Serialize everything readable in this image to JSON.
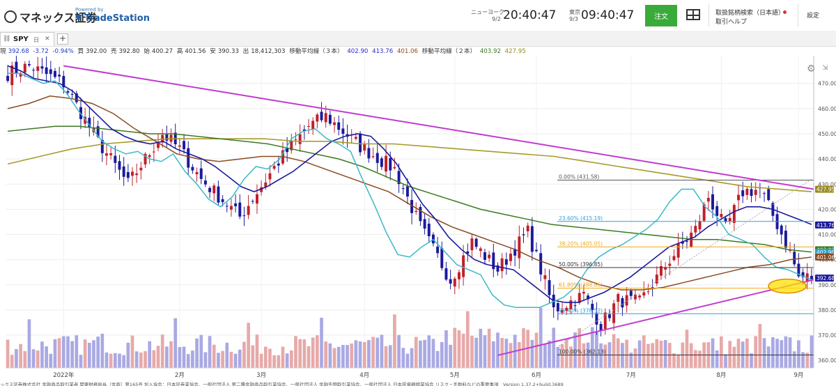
{
  "header": {
    "brand": "マネックス証券",
    "powered_by": "Powered by",
    "tradestation": "TradeStation",
    "ny_label": "ニューヨーク",
    "ny_date": "9/2",
    "ny_time": "20:40:47",
    "tokyo_label": "東京",
    "tokyo_date": "9/3",
    "tokyo_time": "09:40:47",
    "order_label": "注文",
    "menu_search": "取扱銘柄検索（日本語）",
    "menu_help": "取引ヘルプ",
    "settings": "設定"
  },
  "tab": {
    "link_icon": "link-icon",
    "symbol": "SPY",
    "timeframe": "日",
    "close": "✕",
    "add": "+"
  },
  "quote": {
    "last_label": "現",
    "last": "392.68",
    "change": "-3.72",
    "change_pct": "-0.94%",
    "bid_label": "買",
    "bid": "392.00",
    "ask_label": "売",
    "ask": "392.80",
    "open_label": "始",
    "open": "400.27",
    "high_label": "高",
    "high": "401.56",
    "low_label": "安",
    "low": "390.33",
    "vol_label": "出",
    "volume": "18,412,303",
    "ma3_label": "移動平均線（３本）",
    "ma3_values": [
      "402.90",
      "413.76",
      "401.06"
    ],
    "ma2_label": "移動平均線（２本）",
    "ma2_values": [
      "403.92",
      "427.95"
    ]
  },
  "footer": "ックス証券株式会社 金融商品取引業者 関東財務局長（金商）第165号 加入協会：日本証券業協会、一般社団法人 第二種金融商品取引業協会、一般社団法人 金融先物取引業協会、一般社団法人 日本投資顧問業協会 リスク・手数料などの重要事項　Version 1.37.2+build.3689",
  "colors": {
    "up": "#c0202a",
    "down": "#1a1a9c",
    "vol_up": "#e7a9a9",
    "vol_down": "#a9a9e4",
    "fib": "#f0a818",
    "fib_blue": "#2f9fd6",
    "trend": "#c03ad0"
  },
  "chart_data": {
    "type": "candlestick",
    "symbol": "SPY",
    "y_ticks": [
      360,
      370,
      380,
      390,
      400,
      410,
      420,
      430,
      440,
      450,
      460,
      470
    ],
    "ylim": [
      357,
      481
    ],
    "x_labels": [
      "2022年",
      "2月",
      "3月",
      "4月",
      "5月",
      "6月",
      "7月",
      "8月",
      "9月"
    ],
    "x_label_bars": [
      13,
      40,
      59,
      83,
      104,
      123,
      145,
      166,
      184
    ],
    "bar_count": 188,
    "anchors": [
      [
        0,
        474
      ],
      [
        5,
        477
      ],
      [
        13,
        470
      ],
      [
        21,
        447
      ],
      [
        28,
        430
      ],
      [
        36,
        450
      ],
      [
        40,
        444
      ],
      [
        45,
        432
      ],
      [
        54,
        417
      ],
      [
        63,
        439
      ],
      [
        70,
        453
      ],
      [
        74,
        457
      ],
      [
        82,
        445
      ],
      [
        90,
        436
      ],
      [
        96,
        413
      ],
      [
        103,
        392
      ],
      [
        108,
        407
      ],
      [
        114,
        396
      ],
      [
        121,
        411
      ],
      [
        125,
        391
      ],
      [
        127,
        380
      ],
      [
        134,
        386
      ],
      [
        138,
        374
      ],
      [
        142,
        384
      ],
      [
        147,
        383
      ],
      [
        154,
        400
      ],
      [
        160,
        412
      ],
      [
        163,
        425
      ],
      [
        167,
        412
      ],
      [
        171,
        427
      ],
      [
        175,
        428
      ],
      [
        179,
        414
      ],
      [
        182,
        403
      ],
      [
        184,
        393
      ],
      [
        187,
        393
      ]
    ],
    "ma_short": [
      474,
      474,
      472,
      470,
      471,
      466,
      459,
      453,
      447,
      444,
      442,
      443,
      440,
      439,
      442,
      435,
      430,
      424,
      421,
      425,
      432,
      437,
      436,
      440,
      448,
      451,
      452,
      448,
      446,
      443,
      432,
      422,
      411,
      402,
      401,
      405,
      408,
      403,
      398,
      396,
      394,
      386,
      382,
      381,
      381,
      381,
      383,
      385,
      389,
      396,
      401,
      404,
      406,
      409,
      412,
      416,
      423,
      428,
      428,
      421,
      417,
      410,
      408,
      406,
      401,
      397,
      396,
      394,
      392
    ],
    "ma_blue": [
      477,
      475,
      472,
      471,
      470,
      467,
      462,
      457,
      452,
      449,
      447,
      446,
      447,
      444,
      442,
      440,
      437,
      433,
      429,
      427,
      429,
      432,
      435,
      439,
      443,
      447,
      449,
      450,
      449,
      444,
      438,
      430,
      422,
      416,
      409,
      404,
      400,
      398,
      397,
      396,
      392,
      388,
      384,
      383,
      383,
      385,
      387,
      390,
      393,
      397,
      401,
      405,
      407,
      409,
      413,
      416,
      419,
      421,
      421,
      420,
      418,
      416,
      414
    ],
    "ma_brown": [
      460,
      462,
      465,
      464,
      462,
      458,
      452,
      447,
      442,
      440,
      439,
      440,
      441,
      441,
      439,
      436,
      433,
      430,
      427,
      422,
      417,
      413,
      410,
      407,
      404,
      400,
      397,
      393,
      390,
      388,
      388,
      389,
      391,
      393,
      395,
      397,
      398,
      400,
      401
    ],
    "ma_green": [
      451,
      452,
      453,
      453,
      452,
      451,
      450,
      450,
      449,
      448,
      447,
      446,
      444,
      442,
      440,
      437,
      433,
      429,
      426,
      423,
      420,
      418,
      416,
      414,
      413,
      412,
      411,
      410,
      409,
      408,
      408,
      407,
      406,
      404,
      403
    ],
    "ma_olive": [
      438,
      441,
      444,
      446,
      447,
      448,
      448,
      448,
      448,
      447,
      447,
      446,
      446,
      445,
      444,
      443,
      442,
      441,
      439,
      437,
      435,
      433,
      431,
      429,
      428,
      427
    ],
    "fibonacci": [
      {
        "label": "0.00% (431.58)",
        "value": 431.58,
        "color": "#555555"
      },
      {
        "label": "23.60% (415.19)",
        "value": 415.19,
        "color": "#2f9fd6"
      },
      {
        "label": "38.20% (405.05)",
        "value": 405.05,
        "color": "#f0a818"
      },
      {
        "label": "50.00% (396.85)",
        "value": 396.85,
        "color": "#333333"
      },
      {
        "label": "61.80% (388.66)",
        "value": 388.66,
        "color": "#f0a818"
      },
      {
        "label": "76.40% (378.52)",
        "value": 378.52,
        "color": "#2f9fd6"
      },
      {
        "label": "100.00% (362.13)",
        "value": 362.13,
        "color": "#333333"
      }
    ],
    "trendlines": [
      {
        "from": [
          13,
          477
        ],
        "to": [
          188,
          428
        ]
      },
      {
        "from": [
          114,
          362
        ],
        "to": [
          188,
          392
        ]
      }
    ],
    "right_labels": [
      {
        "value": 427.95,
        "text": "427.95",
        "color": "#9a8a20"
      },
      {
        "value": 413.76,
        "text": "413.76",
        "color": "#1a1a9c"
      },
      {
        "value": 403.92,
        "text": "403.92",
        "color": "#3b7a1e"
      },
      {
        "value": 402.9,
        "text": "402.90",
        "color": "#2a9fd0"
      },
      {
        "value": 401.06,
        "text": "401.06",
        "color": "#8a4a1f"
      },
      {
        "value": 392.68,
        "text": "392.68",
        "color": "#1a1a9c"
      }
    ],
    "ellipse": {
      "bar": 182,
      "value": 389.5
    },
    "grid": true
  }
}
